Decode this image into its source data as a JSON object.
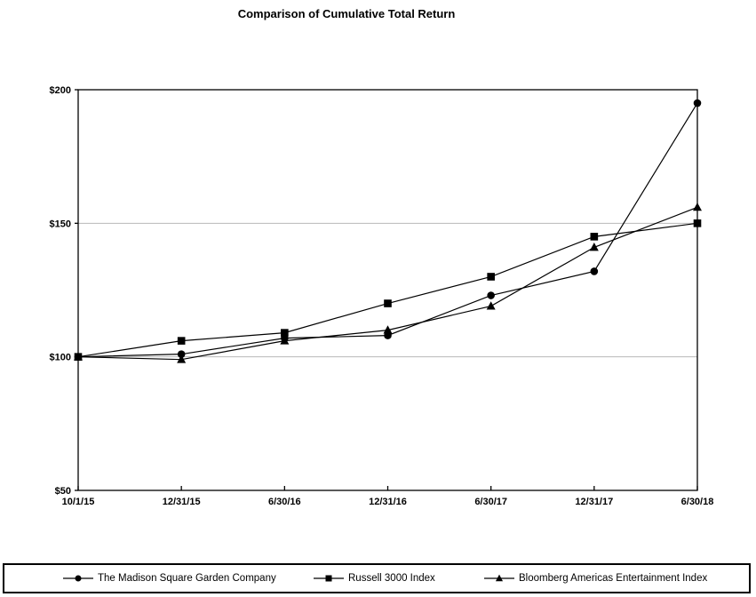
{
  "title": "Comparison of Cumulative Total Return",
  "chart_data": {
    "type": "line",
    "title": "Comparison of Cumulative Total Return",
    "x_labels": [
      "10/1/15",
      "12/31/15",
      "6/30/16",
      "12/31/16",
      "6/30/17",
      "12/31/17",
      "6/30/18"
    ],
    "ylim": [
      50,
      200
    ],
    "y_ticks": [
      {
        "label": "$50",
        "value": 50
      },
      {
        "label": "$100",
        "value": 100
      },
      {
        "label": "$150",
        "value": 150
      },
      {
        "label": "$200",
        "value": 200
      }
    ],
    "grid_values": [
      100,
      150
    ],
    "grid": "horizontal-only",
    "legend_position": "bottom",
    "series": [
      {
        "name": "The Madison Square Garden Company",
        "marker": "circle",
        "values": [
          100,
          101,
          107,
          108,
          123,
          132,
          195
        ]
      },
      {
        "name": "Russell 3000 Index",
        "marker": "square",
        "values": [
          100,
          106,
          109,
          120,
          130,
          145,
          150
        ]
      },
      {
        "name": "Bloomberg Americas Entertainment Index",
        "marker": "triangle",
        "values": [
          100,
          99,
          106,
          110,
          119,
          141,
          156
        ]
      }
    ],
    "colors": {
      "line": "#000000",
      "marker": "#000000",
      "axis": "#000000",
      "grid": "#b8b8b8"
    }
  }
}
